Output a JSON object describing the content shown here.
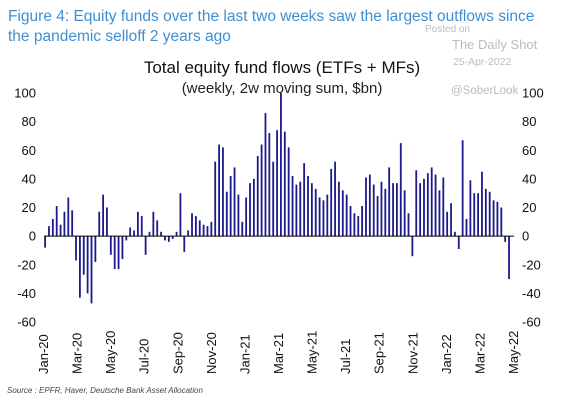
{
  "caption": "Figure 4: Equity funds over the last two weeks saw the largest outflows since the pandemic selloff 2 years ago",
  "watermark": {
    "posted": "Posted on",
    "brand": "The Daily Shot",
    "date": "25-Apr-2022",
    "handle": "@SoberLook"
  },
  "source": "Source : EPFR, Haver, Deutsche Bank Asset Allocation",
  "colors": {
    "caption": "#3f8fd2",
    "bars": "#1a1a8c",
    "zero_line": "#000000"
  },
  "chart_data": {
    "type": "bar",
    "title": "Total equity fund flows (ETFs + MFs)",
    "subtitle": "(weekly, 2w moving sum, $bn)",
    "xlabel": "",
    "ylabel": "",
    "ylim": [
      -60,
      100
    ],
    "yticks": [
      -60,
      -40,
      -20,
      0,
      20,
      40,
      60,
      80,
      100
    ],
    "ytick_labels_left": [
      "-60",
      "-40",
      "-20",
      "0",
      "20",
      "40",
      "60",
      "80",
      "100"
    ],
    "ytick_labels_right": [
      "-60",
      "-40",
      "-20",
      "0",
      "20",
      "40",
      "60",
      "80",
      "100"
    ],
    "xtick_labels": [
      "Jan-20",
      "Mar-20",
      "May-20",
      "Jul-20",
      "Sep-20",
      "Nov-20",
      "Jan-21",
      "Mar-21",
      "May-21",
      "Jul-21",
      "Sep-21",
      "Nov-21",
      "Jan-22",
      "Mar-22",
      "May-22"
    ],
    "x_range": [
      "2020-01-01",
      "2022-05-01"
    ],
    "grid": false,
    "bars": [
      {
        "x": "2020-01-03",
        "y": -8
      },
      {
        "x": "2020-01-10",
        "y": 7
      },
      {
        "x": "2020-01-17",
        "y": 12
      },
      {
        "x": "2020-01-24",
        "y": 21
      },
      {
        "x": "2020-01-31",
        "y": 8
      },
      {
        "x": "2020-02-07",
        "y": 17
      },
      {
        "x": "2020-02-14",
        "y": 27
      },
      {
        "x": "2020-02-21",
        "y": 18
      },
      {
        "x": "2020-02-28",
        "y": -17
      },
      {
        "x": "2020-03-06",
        "y": -43
      },
      {
        "x": "2020-03-13",
        "y": -27
      },
      {
        "x": "2020-03-20",
        "y": -40
      },
      {
        "x": "2020-03-27",
        "y": -47
      },
      {
        "x": "2020-04-03",
        "y": -18
      },
      {
        "x": "2020-04-10",
        "y": 17
      },
      {
        "x": "2020-04-17",
        "y": 29
      },
      {
        "x": "2020-04-24",
        "y": 20
      },
      {
        "x": "2020-05-01",
        "y": -13
      },
      {
        "x": "2020-05-08",
        "y": -23
      },
      {
        "x": "2020-05-15",
        "y": -23
      },
      {
        "x": "2020-05-22",
        "y": -16
      },
      {
        "x": "2020-05-29",
        "y": -3
      },
      {
        "x": "2020-06-05",
        "y": 6
      },
      {
        "x": "2020-06-12",
        "y": 4
      },
      {
        "x": "2020-06-19",
        "y": 17
      },
      {
        "x": "2020-06-26",
        "y": 14
      },
      {
        "x": "2020-07-03",
        "y": -13
      },
      {
        "x": "2020-07-10",
        "y": 3
      },
      {
        "x": "2020-07-17",
        "y": 17
      },
      {
        "x": "2020-07-24",
        "y": 11
      },
      {
        "x": "2020-07-31",
        "y": 3
      },
      {
        "x": "2020-08-07",
        "y": -3
      },
      {
        "x": "2020-08-14",
        "y": -4
      },
      {
        "x": "2020-08-21",
        "y": -2
      },
      {
        "x": "2020-08-28",
        "y": 3
      },
      {
        "x": "2020-09-04",
        "y": 30
      },
      {
        "x": "2020-09-11",
        "y": -11
      },
      {
        "x": "2020-09-18",
        "y": 4
      },
      {
        "x": "2020-09-25",
        "y": 16
      },
      {
        "x": "2020-10-02",
        "y": 14
      },
      {
        "x": "2020-10-09",
        "y": 11
      },
      {
        "x": "2020-10-16",
        "y": 8
      },
      {
        "x": "2020-10-23",
        "y": 7
      },
      {
        "x": "2020-10-30",
        "y": 10
      },
      {
        "x": "2020-11-06",
        "y": 52
      },
      {
        "x": "2020-11-13",
        "y": 64
      },
      {
        "x": "2020-11-20",
        "y": 62
      },
      {
        "x": "2020-11-27",
        "y": 31
      },
      {
        "x": "2020-12-04",
        "y": 42
      },
      {
        "x": "2020-12-11",
        "y": 48
      },
      {
        "x": "2020-12-18",
        "y": 29
      },
      {
        "x": "2020-12-25",
        "y": 10
      },
      {
        "x": "2021-01-01",
        "y": 27
      },
      {
        "x": "2021-01-08",
        "y": 37
      },
      {
        "x": "2021-01-15",
        "y": 40
      },
      {
        "x": "2021-01-22",
        "y": 56
      },
      {
        "x": "2021-01-29",
        "y": 64
      },
      {
        "x": "2021-02-05",
        "y": 86
      },
      {
        "x": "2021-02-12",
        "y": 72
      },
      {
        "x": "2021-02-19",
        "y": 52
      },
      {
        "x": "2021-02-26",
        "y": 74
      },
      {
        "x": "2021-03-05",
        "y": 100
      },
      {
        "x": "2021-03-12",
        "y": 73
      },
      {
        "x": "2021-03-19",
        "y": 62
      },
      {
        "x": "2021-03-26",
        "y": 42
      },
      {
        "x": "2021-04-02",
        "y": 36
      },
      {
        "x": "2021-04-09",
        "y": 38
      },
      {
        "x": "2021-04-16",
        "y": 51
      },
      {
        "x": "2021-04-23",
        "y": 42
      },
      {
        "x": "2021-04-30",
        "y": 37
      },
      {
        "x": "2021-05-07",
        "y": 33
      },
      {
        "x": "2021-05-14",
        "y": 27
      },
      {
        "x": "2021-05-21",
        "y": 25
      },
      {
        "x": "2021-05-28",
        "y": 29
      },
      {
        "x": "2021-06-04",
        "y": 47
      },
      {
        "x": "2021-06-11",
        "y": 52
      },
      {
        "x": "2021-06-18",
        "y": 38
      },
      {
        "x": "2021-06-25",
        "y": 32
      },
      {
        "x": "2021-07-02",
        "y": 29
      },
      {
        "x": "2021-07-09",
        "y": 21
      },
      {
        "x": "2021-07-16",
        "y": 16
      },
      {
        "x": "2021-07-23",
        "y": 14
      },
      {
        "x": "2021-07-30",
        "y": 21
      },
      {
        "x": "2021-08-06",
        "y": 41
      },
      {
        "x": "2021-08-13",
        "y": 43
      },
      {
        "x": "2021-08-20",
        "y": 36
      },
      {
        "x": "2021-08-27",
        "y": 28
      },
      {
        "x": "2021-09-03",
        "y": 38
      },
      {
        "x": "2021-09-10",
        "y": 33
      },
      {
        "x": "2021-09-17",
        "y": 48
      },
      {
        "x": "2021-09-24",
        "y": 37
      },
      {
        "x": "2021-10-01",
        "y": 37
      },
      {
        "x": "2021-10-08",
        "y": 65
      },
      {
        "x": "2021-10-15",
        "y": 32
      },
      {
        "x": "2021-10-22",
        "y": 16
      },
      {
        "x": "2021-10-29",
        "y": -14
      },
      {
        "x": "2021-11-05",
        "y": 46
      },
      {
        "x": "2021-11-12",
        "y": 37
      },
      {
        "x": "2021-11-19",
        "y": 40
      },
      {
        "x": "2021-11-26",
        "y": 44
      },
      {
        "x": "2021-12-03",
        "y": 48
      },
      {
        "x": "2021-12-10",
        "y": 43
      },
      {
        "x": "2021-12-17",
        "y": 32
      },
      {
        "x": "2021-12-24",
        "y": 41
      },
      {
        "x": "2021-12-31",
        "y": 17
      },
      {
        "x": "2022-01-07",
        "y": 23
      },
      {
        "x": "2022-01-14",
        "y": 3
      },
      {
        "x": "2022-01-21",
        "y": -9
      },
      {
        "x": "2022-01-28",
        "y": 67
      },
      {
        "x": "2022-02-04",
        "y": 12
      },
      {
        "x": "2022-02-11",
        "y": 39
      },
      {
        "x": "2022-02-18",
        "y": 30
      },
      {
        "x": "2022-02-25",
        "y": 30
      },
      {
        "x": "2022-03-04",
        "y": 45
      },
      {
        "x": "2022-03-11",
        "y": 33
      },
      {
        "x": "2022-03-18",
        "y": 31
      },
      {
        "x": "2022-03-25",
        "y": 25
      },
      {
        "x": "2022-04-01",
        "y": 24
      },
      {
        "x": "2022-04-08",
        "y": 20
      },
      {
        "x": "2022-04-15",
        "y": -4
      },
      {
        "x": "2022-04-22",
        "y": -30
      }
    ]
  }
}
